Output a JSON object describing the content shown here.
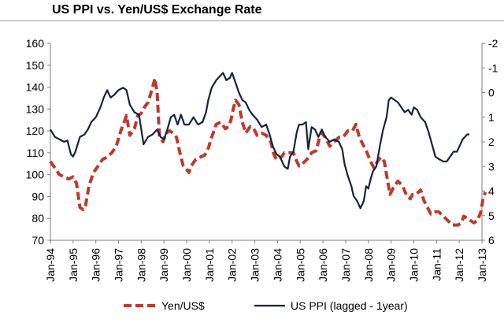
{
  "chart_data": {
    "type": "line",
    "title": "US PPI vs. Yen/US$ Exchange Rate",
    "xlabel": "",
    "ylabel": "",
    "x_ticks": [
      "Jan-94",
      "Jan-95",
      "Jan-96",
      "Jan-97",
      "Jan-98",
      "Jan-99",
      "Jan-00",
      "Jan-01",
      "Jan-02",
      "Jan-03",
      "Jan-04",
      "Jan-05",
      "Jan-06",
      "Jan-07",
      "Jan-08",
      "Jan-09",
      "Jan-10",
      "Jan-11",
      "Jan-12",
      "Jan-13"
    ],
    "xlim": [
      1994,
      2013
    ],
    "y_left": {
      "ticks": [
        "160",
        "150",
        "140",
        "130",
        "120",
        "110",
        "100",
        "90",
        "80",
        "70"
      ],
      "ylim": [
        70,
        160
      ]
    },
    "y_right": {
      "ticks": [
        "-2",
        "-1",
        "0",
        "1",
        "2",
        "3",
        "4",
        "5",
        "6"
      ],
      "ylim": [
        6,
        -2
      ],
      "inverted": true
    },
    "grid": false,
    "legend_position": "bottom",
    "series": [
      {
        "name": "Yen/US$",
        "axis": "left",
        "style": "dashed",
        "color": "#c0392b",
        "points": [
          [
            1994.0,
            106
          ],
          [
            1994.2,
            103
          ],
          [
            1994.4,
            100
          ],
          [
            1994.6,
            99
          ],
          [
            1994.8,
            98
          ],
          [
            1995.0,
            99
          ],
          [
            1995.15,
            96
          ],
          [
            1995.3,
            85
          ],
          [
            1995.45,
            84
          ],
          [
            1995.55,
            86
          ],
          [
            1995.7,
            95
          ],
          [
            1995.9,
            101
          ],
          [
            1996.1,
            104
          ],
          [
            1996.3,
            107
          ],
          [
            1996.5,
            108
          ],
          [
            1996.7,
            110
          ],
          [
            1996.9,
            113
          ],
          [
            1997.1,
            120
          ],
          [
            1997.25,
            124
          ],
          [
            1997.35,
            127
          ],
          [
            1997.5,
            118
          ],
          [
            1997.7,
            121
          ],
          [
            1997.85,
            127
          ],
          [
            1998.0,
            128
          ],
          [
            1998.15,
            131
          ],
          [
            1998.3,
            133
          ],
          [
            1998.5,
            140
          ],
          [
            1998.6,
            144
          ],
          [
            1998.7,
            137
          ],
          [
            1998.8,
            118
          ],
          [
            1998.95,
            115
          ],
          [
            1999.1,
            119
          ],
          [
            1999.25,
            120
          ],
          [
            1999.4,
            119
          ],
          [
            1999.55,
            117
          ],
          [
            1999.7,
            110
          ],
          [
            1999.85,
            104
          ],
          [
            1999.95,
            103
          ],
          [
            2000.1,
            101
          ],
          [
            2000.2,
            104
          ],
          [
            2000.4,
            107
          ],
          [
            2000.6,
            108
          ],
          [
            2000.8,
            109
          ],
          [
            2000.95,
            112
          ],
          [
            2001.1,
            117
          ],
          [
            2001.3,
            123
          ],
          [
            2001.5,
            124
          ],
          [
            2001.7,
            121
          ],
          [
            2001.85,
            122
          ],
          [
            2001.95,
            125
          ],
          [
            2002.05,
            130
          ],
          [
            2002.15,
            134
          ],
          [
            2002.3,
            132
          ],
          [
            2002.45,
            124
          ],
          [
            2002.6,
            119
          ],
          [
            2002.8,
            122
          ],
          [
            2002.95,
            121
          ],
          [
            2003.1,
            118
          ],
          [
            2003.3,
            119
          ],
          [
            2003.5,
            118
          ],
          [
            2003.7,
            115
          ],
          [
            2003.85,
            109
          ],
          [
            2003.95,
            107
          ],
          [
            2004.1,
            107
          ],
          [
            2004.3,
            110
          ],
          [
            2004.5,
            110
          ],
          [
            2004.7,
            110
          ],
          [
            2004.85,
            106
          ],
          [
            2004.95,
            104
          ],
          [
            2005.1,
            105
          ],
          [
            2005.3,
            107
          ],
          [
            2005.5,
            110
          ],
          [
            2005.7,
            111
          ],
          [
            2005.85,
            117
          ],
          [
            2005.95,
            119
          ],
          [
            2006.1,
            117
          ],
          [
            2006.3,
            113
          ],
          [
            2006.5,
            115
          ],
          [
            2006.7,
            117
          ],
          [
            2006.85,
            117
          ],
          [
            2006.95,
            118
          ],
          [
            2007.1,
            120
          ],
          [
            2007.3,
            120
          ],
          [
            2007.45,
            123
          ],
          [
            2007.6,
            117
          ],
          [
            2007.75,
            114
          ],
          [
            2007.9,
            111
          ],
          [
            2008.1,
            106
          ],
          [
            2008.25,
            103
          ],
          [
            2008.4,
            106
          ],
          [
            2008.55,
            108
          ],
          [
            2008.7,
            106
          ],
          [
            2008.85,
            97
          ],
          [
            2008.95,
            91
          ],
          [
            2009.1,
            94
          ],
          [
            2009.3,
            97
          ],
          [
            2009.5,
            95
          ],
          [
            2009.7,
            90
          ],
          [
            2009.85,
            89
          ],
          [
            2009.95,
            91
          ],
          [
            2010.1,
            91
          ],
          [
            2010.3,
            93
          ],
          [
            2010.45,
            88
          ],
          [
            2010.6,
            85
          ],
          [
            2010.75,
            82
          ],
          [
            2010.95,
            83
          ],
          [
            2011.1,
            83
          ],
          [
            2011.3,
            81
          ],
          [
            2011.5,
            79
          ],
          [
            2011.7,
            77
          ],
          [
            2011.85,
            77
          ],
          [
            2011.95,
            77
          ],
          [
            2012.1,
            78
          ],
          [
            2012.2,
            81
          ],
          [
            2012.35,
            80
          ],
          [
            2012.5,
            79
          ],
          [
            2012.65,
            78
          ],
          [
            2012.8,
            79
          ],
          [
            2012.95,
            83
          ],
          [
            2013.05,
            89
          ],
          [
            2013.15,
            92
          ]
        ]
      },
      {
        "name": "US PPI (lagged - 1year)",
        "axis": "right",
        "style": "solid",
        "color": "#14233d",
        "points": [
          [
            1994.0,
            1.5
          ],
          [
            1994.2,
            1.8
          ],
          [
            1994.4,
            1.9
          ],
          [
            1994.6,
            2.0
          ],
          [
            1994.75,
            1.95
          ],
          [
            1994.9,
            2.5
          ],
          [
            1995.0,
            2.6
          ],
          [
            1995.1,
            2.4
          ],
          [
            1995.3,
            1.8
          ],
          [
            1995.5,
            1.7
          ],
          [
            1995.65,
            1.5
          ],
          [
            1995.8,
            1.2
          ],
          [
            1996.0,
            1.0
          ],
          [
            1996.2,
            0.6
          ],
          [
            1996.35,
            0.2
          ],
          [
            1996.5,
            -0.1
          ],
          [
            1996.65,
            0.2
          ],
          [
            1996.8,
            0.1
          ],
          [
            1997.0,
            -0.1
          ],
          [
            1997.2,
            -0.2
          ],
          [
            1997.35,
            -0.1
          ],
          [
            1997.5,
            0.5
          ],
          [
            1997.7,
            0.8
          ],
          [
            1997.9,
            0.9
          ],
          [
            1998.0,
            1.5
          ],
          [
            1998.1,
            2.1
          ],
          [
            1998.3,
            1.8
          ],
          [
            1998.5,
            1.7
          ],
          [
            1998.7,
            1.5
          ],
          [
            1998.85,
            1.8
          ],
          [
            1999.0,
            1.9
          ],
          [
            1999.15,
            1.5
          ],
          [
            1999.3,
            1.0
          ],
          [
            1999.45,
            0.9
          ],
          [
            1999.6,
            1.3
          ],
          [
            1999.75,
            0.9
          ],
          [
            1999.9,
            1.3
          ],
          [
            2000.1,
            1.3
          ],
          [
            2000.3,
            1.0
          ],
          [
            2000.5,
            1.3
          ],
          [
            2000.7,
            1.2
          ],
          [
            2000.85,
            0.8
          ],
          [
            2000.95,
            0.3
          ],
          [
            2001.1,
            -0.2
          ],
          [
            2001.3,
            -0.5
          ],
          [
            2001.5,
            -0.7
          ],
          [
            2001.6,
            -0.8
          ],
          [
            2001.75,
            -0.5
          ],
          [
            2001.9,
            -0.6
          ],
          [
            2002.0,
            -0.8
          ],
          [
            2002.15,
            -0.4
          ],
          [
            2002.3,
            0.0
          ],
          [
            2002.45,
            0.3
          ],
          [
            2002.6,
            0.4
          ],
          [
            2002.75,
            0.7
          ],
          [
            2002.9,
            0.9
          ],
          [
            2003.1,
            1.1
          ],
          [
            2003.3,
            1.4
          ],
          [
            2003.5,
            1.3
          ],
          [
            2003.65,
            1.7
          ],
          [
            2003.8,
            2.2
          ],
          [
            2003.95,
            2.5
          ],
          [
            2004.1,
            2.6
          ],
          [
            2004.3,
            3.0
          ],
          [
            2004.45,
            3.1
          ],
          [
            2004.55,
            2.6
          ],
          [
            2004.7,
            2.4
          ],
          [
            2004.85,
            1.6
          ],
          [
            2004.95,
            1.3
          ],
          [
            2005.1,
            1.3
          ],
          [
            2005.25,
            1.2
          ],
          [
            2005.35,
            2.3
          ],
          [
            2005.5,
            1.4
          ],
          [
            2005.65,
            1.5
          ],
          [
            2005.8,
            1.8
          ],
          [
            2005.95,
            1.5
          ],
          [
            2006.1,
            1.8
          ],
          [
            2006.3,
            2.0
          ],
          [
            2006.5,
            1.9
          ],
          [
            2006.7,
            2.0
          ],
          [
            2006.85,
            2.3
          ],
          [
            2006.95,
            2.9
          ],
          [
            2007.1,
            3.4
          ],
          [
            2007.25,
            3.8
          ],
          [
            2007.35,
            4.2
          ],
          [
            2007.5,
            4.4
          ],
          [
            2007.65,
            4.7
          ],
          [
            2007.8,
            4.4
          ],
          [
            2007.9,
            3.8
          ],
          [
            2008.0,
            3.9
          ],
          [
            2008.1,
            3.5
          ],
          [
            2008.2,
            3.2
          ],
          [
            2008.35,
            3.0
          ],
          [
            2008.5,
            2.2
          ],
          [
            2008.65,
            1.5
          ],
          [
            2008.8,
            1.0
          ],
          [
            2008.9,
            0.3
          ],
          [
            2009.0,
            0.2
          ],
          [
            2009.15,
            0.3
          ],
          [
            2009.3,
            0.4
          ],
          [
            2009.45,
            0.6
          ],
          [
            2009.6,
            0.8
          ],
          [
            2009.75,
            0.7
          ],
          [
            2009.9,
            0.9
          ],
          [
            2010.0,
            0.6
          ],
          [
            2010.15,
            0.7
          ],
          [
            2010.3,
            1.0
          ],
          [
            2010.5,
            1.2
          ],
          [
            2010.65,
            1.6
          ],
          [
            2010.8,
            2.1
          ],
          [
            2010.95,
            2.6
          ],
          [
            2011.1,
            2.7
          ],
          [
            2011.3,
            2.8
          ],
          [
            2011.45,
            2.8
          ],
          [
            2011.6,
            2.6
          ],
          [
            2011.75,
            2.4
          ],
          [
            2011.9,
            2.4
          ],
          [
            2012.05,
            2.1
          ],
          [
            2012.15,
            1.9
          ],
          [
            2012.25,
            1.8
          ],
          [
            2012.35,
            1.7
          ],
          [
            2012.45,
            1.7
          ]
        ]
      }
    ]
  }
}
